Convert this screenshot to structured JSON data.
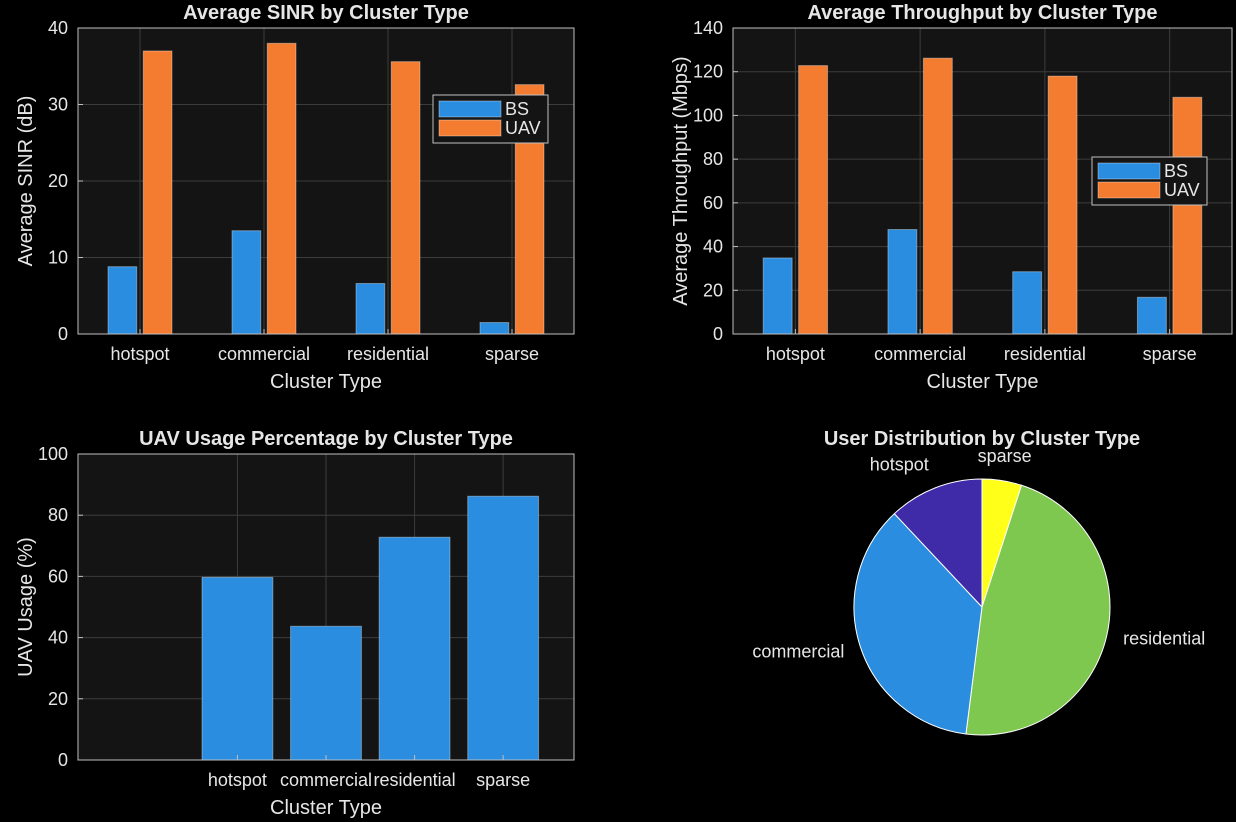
{
  "colors": {
    "figure_bg": "#000000",
    "axes_bg": "#141414",
    "axis": "#bfbfbf",
    "grid": "#3c3c3c",
    "text": "#e6e6e6",
    "bs": "#2a8de0",
    "uav": "#f47c30"
  },
  "chart_data": [
    {
      "type": "bar",
      "title": "Average SINR by Cluster Type",
      "xlabel": "Cluster Type",
      "ylabel": "Average SINR (dB)",
      "categories": [
        "hotspot",
        "commercial",
        "residential",
        "sparse"
      ],
      "series": [
        {
          "name": "BS",
          "values": [
            8.8,
            13.5,
            6.6,
            1.5
          ]
        },
        {
          "name": "UAV",
          "values": [
            37.0,
            38.0,
            35.6,
            32.6
          ]
        }
      ],
      "ylim": [
        0,
        40
      ],
      "yticks": [
        0,
        10,
        20,
        30,
        40
      ],
      "grid": true,
      "legend": "upper-right-inner"
    },
    {
      "type": "bar",
      "title": "Average Throughput by Cluster Type",
      "xlabel": "Cluster Type",
      "ylabel": "Average Throughput (Mbps)",
      "categories": [
        "hotspot",
        "commercial",
        "residential",
        "sparse"
      ],
      "series": [
        {
          "name": "BS",
          "values": [
            34.8,
            47.8,
            28.5,
            16.8
          ]
        },
        {
          "name": "UAV",
          "values": [
            122.8,
            126.2,
            118.0,
            108.3
          ]
        }
      ],
      "ylim": [
        0,
        140
      ],
      "yticks": [
        0,
        20,
        40,
        60,
        80,
        100,
        120,
        140
      ],
      "grid": true,
      "legend": "right"
    },
    {
      "type": "bar",
      "title": "UAV Usage Percentage by Cluster Type",
      "xlabel": "Cluster Type",
      "ylabel": "UAV Usage (%)",
      "categories": [
        "hotspot",
        "commercial",
        "residential",
        "sparse"
      ],
      "values": [
        59.7,
        43.7,
        72.8,
        86.2
      ],
      "ylim": [
        0,
        100
      ],
      "yticks": [
        0,
        20,
        40,
        60,
        80,
        100
      ],
      "grid": true
    },
    {
      "type": "pie",
      "title": "User Distribution by Cluster Type",
      "slices": [
        {
          "label": "sparse",
          "value": 5.0,
          "color": "#ffff1a"
        },
        {
          "label": "residential",
          "value": 47.0,
          "color": "#7ec850"
        },
        {
          "label": "commercial",
          "value": 36.0,
          "color": "#2a8de0"
        },
        {
          "label": "hotspot",
          "value": 12.0,
          "color": "#3f2aa8"
        }
      ]
    }
  ]
}
